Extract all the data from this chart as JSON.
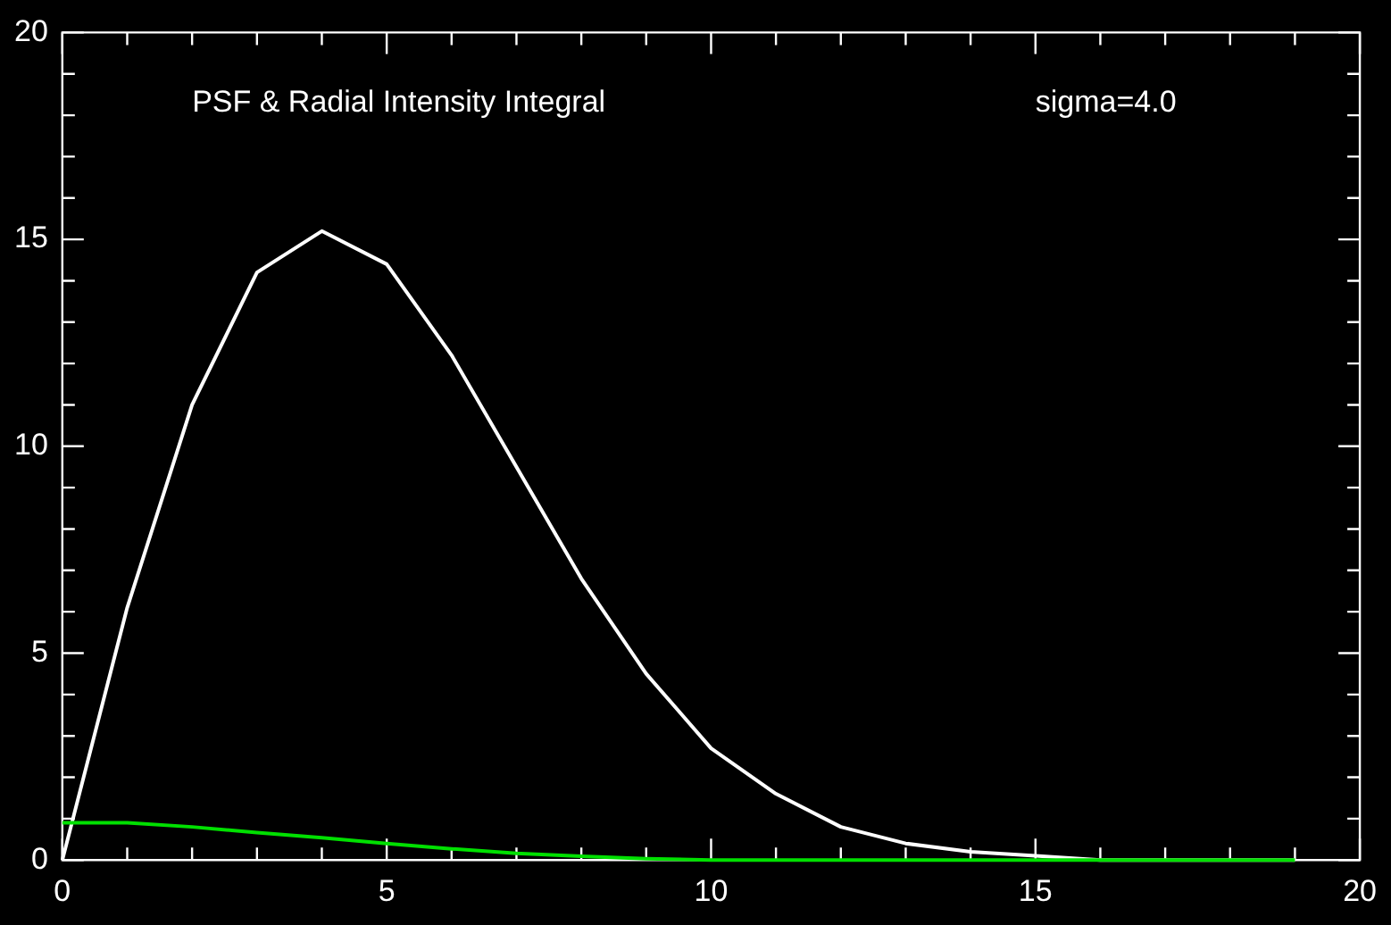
{
  "chart_data": {
    "type": "line",
    "title": "PSF & Radial Intensity Integral",
    "annotations": [
      "sigma=4.0"
    ],
    "x": [
      0,
      1,
      2,
      3,
      4,
      5,
      6,
      7,
      8,
      9,
      10,
      11,
      12,
      13,
      14,
      15,
      16,
      17,
      18,
      19
    ],
    "series": [
      {
        "color": "#ffffff",
        "values": [
          0,
          6.1,
          11.0,
          14.2,
          15.2,
          14.4,
          12.2,
          9.5,
          6.8,
          4.5,
          2.7,
          1.6,
          0.8,
          0.4,
          0.2,
          0.1,
          0,
          0,
          0,
          0
        ]
      },
      {
        "color": "#00e000",
        "values": [
          0.9,
          0.9,
          0.8,
          0.66,
          0.54,
          0.4,
          0.27,
          0.16,
          0.09,
          0.03,
          0,
          0,
          0,
          0,
          0,
          0,
          0,
          0,
          0,
          0
        ]
      }
    ],
    "xlim": [
      0,
      20
    ],
    "ylim": [
      0,
      20
    ],
    "xticks": [
      0,
      {
        "value": 1,
        "label": null
      },
      {
        "value": 2,
        "label": null
      },
      {
        "value": 3,
        "label": null
      },
      {
        "value": 4,
        "label": null
      },
      5,
      {
        "value": 6,
        "label": null
      },
      {
        "value": 7,
        "label": null
      },
      {
        "value": 8,
        "label": null
      },
      {
        "value": 9,
        "label": null
      },
      10,
      {
        "value": 11,
        "label": null
      },
      {
        "value": 12,
        "label": null
      },
      {
        "value": 13,
        "label": null
      },
      {
        "value": 14,
        "label": null
      },
      15,
      {
        "value": 16,
        "label": null
      },
      {
        "value": 17,
        "label": null
      },
      {
        "value": 18,
        "label": null
      },
      {
        "value": 19,
        "label": null
      },
      20
    ],
    "yticks": [
      0,
      {
        "value": 1,
        "label": null
      },
      {
        "value": 2,
        "label": null
      },
      {
        "value": 3,
        "label": null
      },
      {
        "value": 4,
        "label": null
      },
      5,
      {
        "value": 6,
        "label": null
      },
      {
        "value": 7,
        "label": null
      },
      {
        "value": 8,
        "label": null
      },
      {
        "value": 9,
        "label": null
      },
      10,
      {
        "value": 11,
        "label": null
      },
      {
        "value": 12,
        "label": null
      },
      {
        "value": 13,
        "label": null
      },
      {
        "value": 14,
        "label": null
      },
      15,
      {
        "value": 16,
        "label": null
      },
      {
        "value": 17,
        "label": null
      },
      {
        "value": 18,
        "label": null
      },
      {
        "value": 19,
        "label": null
      },
      20
    ],
    "grid": false,
    "legend": false,
    "marker": "none",
    "line_style": "solid"
  }
}
